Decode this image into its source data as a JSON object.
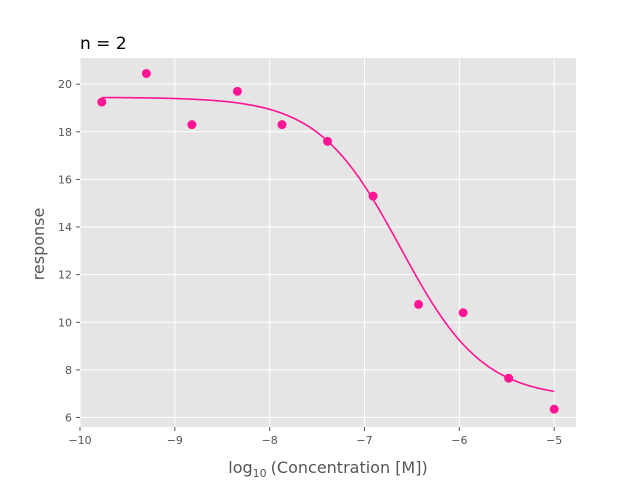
{
  "chart_data": {
    "type": "scatter",
    "title": "n = 2",
    "xlabel_base": "log",
    "xlabel_sub": "10",
    "xlabel_rest": "(Concentration [M])",
    "ylabel": "response",
    "xlim": [
      -10,
      -4.77
    ],
    "ylim": [
      5.6,
      21.1
    ],
    "xticks": [
      -10,
      -9,
      -8,
      -7,
      -6,
      -5
    ],
    "xtick_labels": [
      "−10",
      "−9",
      "−8",
      "−7",
      "−6",
      "−5"
    ],
    "yticks": [
      6,
      8,
      10,
      12,
      14,
      16,
      18,
      20
    ],
    "ytick_labels": [
      "6",
      "8",
      "10",
      "12",
      "14",
      "16",
      "18",
      "20"
    ],
    "grid": true,
    "points": {
      "x": [
        -9.77,
        -9.3,
        -8.82,
        -8.34,
        -7.87,
        -7.39,
        -6.91,
        -6.43,
        -5.96,
        -5.48,
        -5.0
      ],
      "y": [
        19.25,
        20.45,
        18.3,
        19.7,
        18.3,
        17.6,
        15.3,
        10.75,
        10.4,
        7.65,
        6.35
      ]
    },
    "fit": {
      "model": "hill",
      "top": 19.45,
      "bottom": 6.8,
      "log_ic50": -6.62,
      "hill_slope": -1.0,
      "x_range": [
        -9.77,
        -5.0
      ]
    },
    "colors": {
      "marker": "#ff1493",
      "line": "#ff1493",
      "background": "#e5e5e5",
      "grid": "#ffffff"
    }
  }
}
